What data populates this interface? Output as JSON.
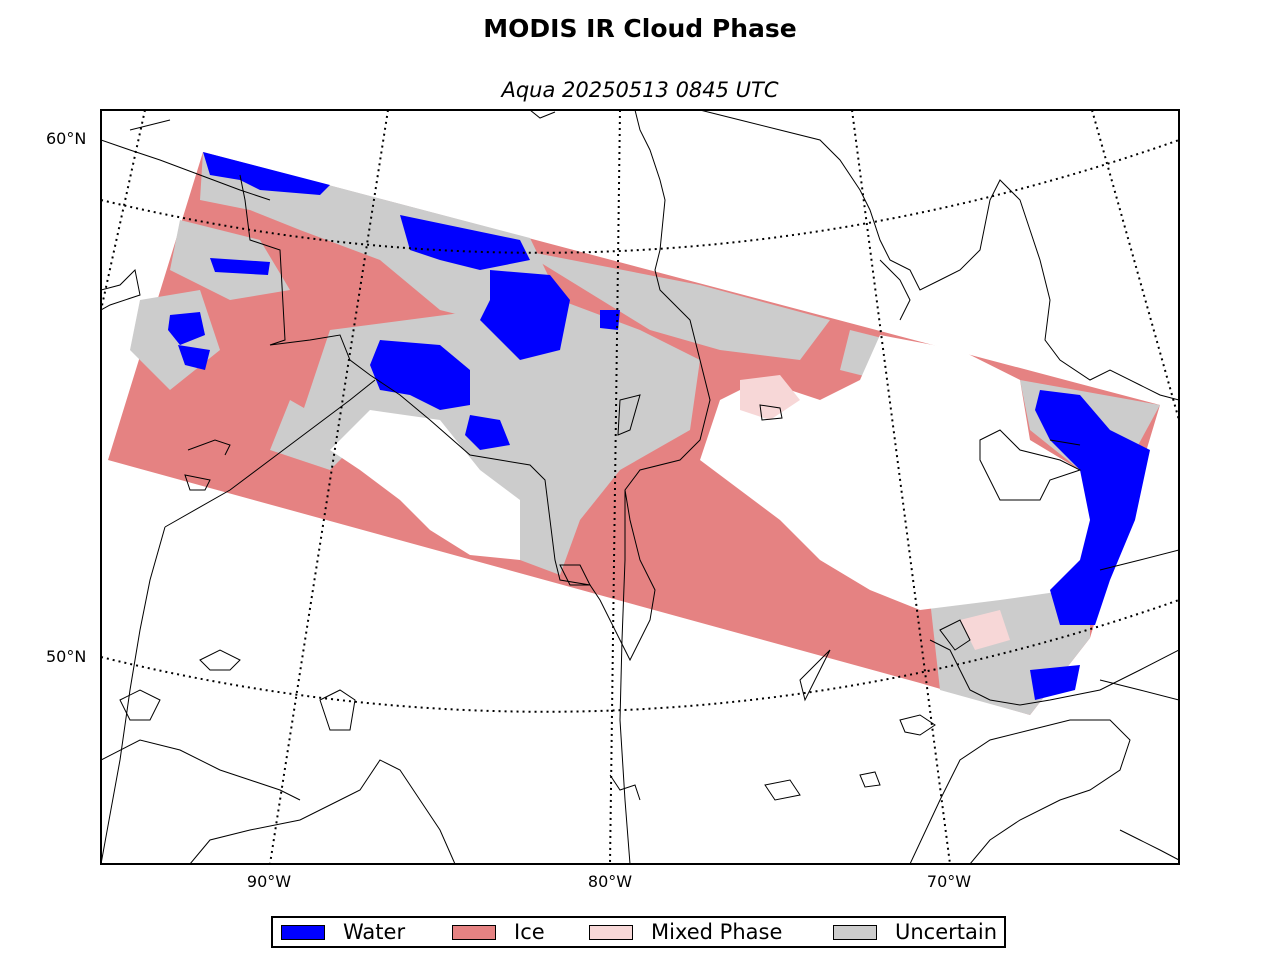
{
  "title": "MODIS IR Cloud Phase",
  "subtitle": "Aqua 20250513 0845 UTC",
  "latitude_labels": [
    "60°N",
    "50°N"
  ],
  "longitude_labels": [
    "90°W",
    "80°W",
    "70°W"
  ],
  "legend": [
    {
      "label": "Water",
      "color": "#0000ff"
    },
    {
      "label": "Ice",
      "color": "#e58282"
    },
    {
      "label": "Mixed Phase",
      "color": "#f7d7d7"
    },
    {
      "label": "Uncertain",
      "color": "#cccccc"
    }
  ],
  "colors": {
    "water": "#0000ff",
    "ice": "#e58282",
    "mixed": "#f7d7d7",
    "uncertain": "#cccccc",
    "clear": "#ffffff",
    "coast": "#000000"
  }
}
